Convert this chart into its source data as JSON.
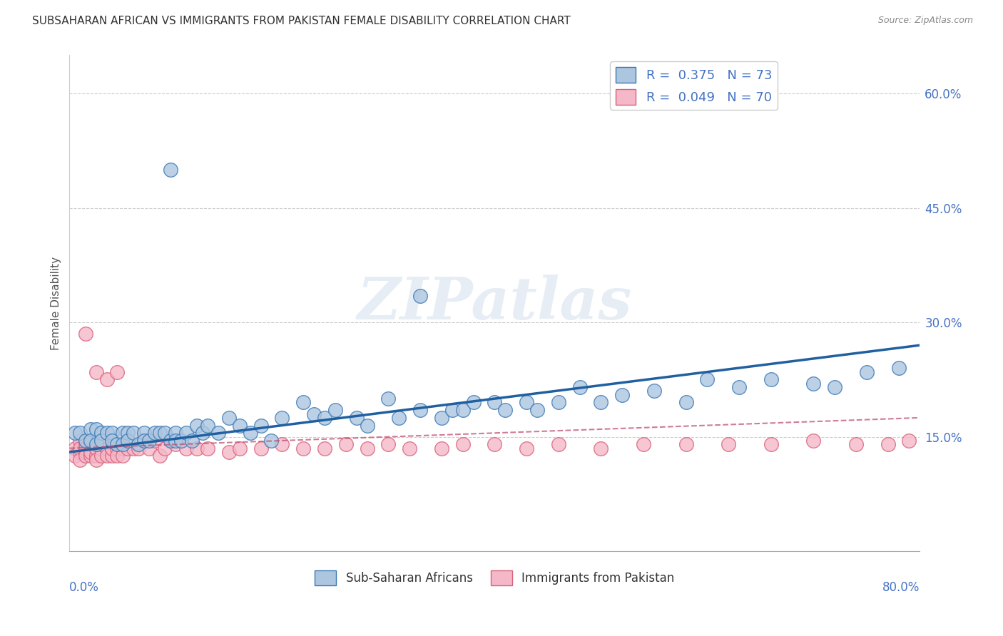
{
  "title": "SUBSAHARAN AFRICAN VS IMMIGRANTS FROM PAKISTAN FEMALE DISABILITY CORRELATION CHART",
  "source": "Source: ZipAtlas.com",
  "ylabel": "Female Disability",
  "yticks": [
    0.0,
    0.15,
    0.3,
    0.45,
    0.6
  ],
  "ytick_labels": [
    "",
    "15.0%",
    "30.0%",
    "45.0%",
    "60.0%"
  ],
  "xlim": [
    0.0,
    0.8
  ],
  "ylim": [
    0.0,
    0.65
  ],
  "blue_color": "#adc6e0",
  "blue_edge_color": "#3a78b5",
  "blue_line_color": "#2060a0",
  "pink_color": "#f4b8c8",
  "pink_edge_color": "#d9607a",
  "pink_line_color": "#c05070",
  "watermark_text": "ZIPatlas",
  "blue_x": [
    0.005,
    0.01,
    0.015,
    0.02,
    0.02,
    0.025,
    0.025,
    0.03,
    0.03,
    0.035,
    0.04,
    0.04,
    0.045,
    0.05,
    0.05,
    0.055,
    0.055,
    0.06,
    0.065,
    0.07,
    0.07,
    0.075,
    0.08,
    0.085,
    0.09,
    0.095,
    0.1,
    0.1,
    0.105,
    0.11,
    0.115,
    0.12,
    0.125,
    0.13,
    0.14,
    0.15,
    0.16,
    0.17,
    0.18,
    0.19,
    0.2,
    0.22,
    0.23,
    0.24,
    0.25,
    0.27,
    0.28,
    0.3,
    0.31,
    0.33,
    0.35,
    0.36,
    0.37,
    0.38,
    0.4,
    0.41,
    0.43,
    0.44,
    0.46,
    0.48,
    0.5,
    0.52,
    0.55,
    0.58,
    0.6,
    0.63,
    0.66,
    0.7,
    0.72,
    0.75,
    0.78,
    0.095,
    0.33
  ],
  "blue_y": [
    0.155,
    0.155,
    0.145,
    0.16,
    0.145,
    0.16,
    0.14,
    0.155,
    0.145,
    0.155,
    0.155,
    0.145,
    0.14,
    0.155,
    0.14,
    0.155,
    0.145,
    0.155,
    0.14,
    0.155,
    0.145,
    0.145,
    0.155,
    0.155,
    0.155,
    0.145,
    0.155,
    0.145,
    0.145,
    0.155,
    0.145,
    0.165,
    0.155,
    0.165,
    0.155,
    0.175,
    0.165,
    0.155,
    0.165,
    0.145,
    0.175,
    0.195,
    0.18,
    0.175,
    0.185,
    0.175,
    0.165,
    0.2,
    0.175,
    0.185,
    0.175,
    0.185,
    0.185,
    0.195,
    0.195,
    0.185,
    0.195,
    0.185,
    0.195,
    0.215,
    0.195,
    0.205,
    0.21,
    0.195,
    0.225,
    0.215,
    0.225,
    0.22,
    0.215,
    0.235,
    0.24,
    0.5,
    0.335
  ],
  "pink_x": [
    0.005,
    0.005,
    0.01,
    0.01,
    0.01,
    0.01,
    0.015,
    0.015,
    0.015,
    0.015,
    0.02,
    0.02,
    0.02,
    0.02,
    0.025,
    0.025,
    0.025,
    0.025,
    0.03,
    0.03,
    0.03,
    0.035,
    0.035,
    0.04,
    0.04,
    0.04,
    0.045,
    0.045,
    0.05,
    0.05,
    0.055,
    0.06,
    0.065,
    0.07,
    0.075,
    0.08,
    0.085,
    0.09,
    0.1,
    0.11,
    0.12,
    0.13,
    0.15,
    0.16,
    0.18,
    0.2,
    0.22,
    0.24,
    0.26,
    0.28,
    0.3,
    0.32,
    0.35,
    0.37,
    0.4,
    0.43,
    0.46,
    0.5,
    0.54,
    0.58,
    0.62,
    0.66,
    0.7,
    0.74,
    0.77,
    0.79,
    0.015,
    0.025,
    0.035,
    0.045
  ],
  "pink_y": [
    0.135,
    0.125,
    0.145,
    0.13,
    0.135,
    0.12,
    0.14,
    0.13,
    0.135,
    0.125,
    0.135,
    0.125,
    0.14,
    0.13,
    0.135,
    0.125,
    0.135,
    0.12,
    0.135,
    0.125,
    0.14,
    0.135,
    0.125,
    0.135,
    0.125,
    0.135,
    0.135,
    0.125,
    0.135,
    0.125,
    0.135,
    0.135,
    0.135,
    0.145,
    0.135,
    0.145,
    0.125,
    0.135,
    0.14,
    0.135,
    0.135,
    0.135,
    0.13,
    0.135,
    0.135,
    0.14,
    0.135,
    0.135,
    0.14,
    0.135,
    0.14,
    0.135,
    0.135,
    0.14,
    0.14,
    0.135,
    0.14,
    0.135,
    0.14,
    0.14,
    0.14,
    0.14,
    0.145,
    0.14,
    0.14,
    0.145,
    0.285,
    0.235,
    0.225,
    0.235
  ],
  "blue_line_x0": 0.0,
  "blue_line_x1": 0.8,
  "blue_line_y0": 0.13,
  "blue_line_y1": 0.27,
  "pink_line_x0": 0.0,
  "pink_line_x1": 0.8,
  "pink_line_y0": 0.135,
  "pink_line_y1": 0.175
}
